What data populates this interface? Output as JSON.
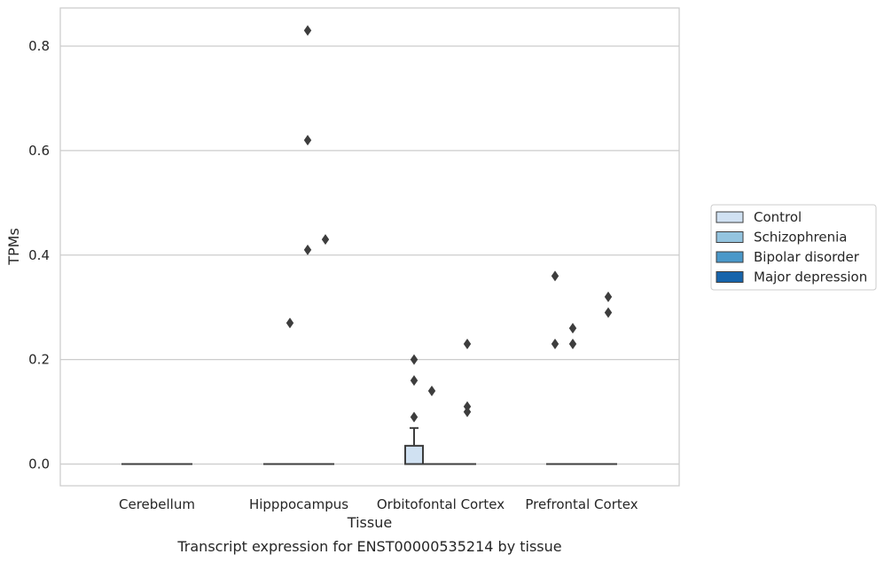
{
  "chart_data": {
    "type": "box",
    "caption": "Transcript expression for ENST00000535214 by tissue",
    "xlabel": "Tissue",
    "ylabel": "TPMs",
    "ylim": [
      -0.04,
      0.873
    ],
    "yticks": [
      0.0,
      0.2,
      0.4,
      0.6,
      0.8
    ],
    "ytick_labels": [
      "0.0",
      "0.2",
      "0.4",
      "0.6",
      "0.8"
    ],
    "grid": "horizontal",
    "legend_position": "right",
    "categories": [
      "Cerebellum",
      "Hipppocampus",
      "Orbitofontal Cortex",
      "Prefrontal Cortex"
    ],
    "series": [
      {
        "name": "Control",
        "color": "#d0e1f2"
      },
      {
        "name": "Schizophrenia",
        "color": "#94c4df"
      },
      {
        "name": "Bipolar disorder",
        "color": "#4a98c9"
      },
      {
        "name": "Major depression",
        "color": "#1764ab"
      }
    ],
    "boxes": [
      {
        "category": 0,
        "series": 0,
        "q1": 0,
        "median": 0,
        "q3": 0,
        "whisker_low": 0,
        "whisker_high": 0,
        "outliers": []
      },
      {
        "category": 0,
        "series": 1,
        "q1": 0,
        "median": 0,
        "q3": 0,
        "whisker_low": 0,
        "whisker_high": 0,
        "outliers": []
      },
      {
        "category": 0,
        "series": 2,
        "q1": 0,
        "median": 0,
        "q3": 0,
        "whisker_low": 0,
        "whisker_high": 0,
        "outliers": []
      },
      {
        "category": 0,
        "series": 3,
        "q1": 0,
        "median": 0,
        "q3": 0,
        "whisker_low": 0,
        "whisker_high": 0,
        "outliers": []
      },
      {
        "category": 1,
        "series": 0,
        "q1": 0,
        "median": 0,
        "q3": 0,
        "whisker_low": 0,
        "whisker_high": 0,
        "outliers": []
      },
      {
        "category": 1,
        "series": 1,
        "q1": 0,
        "median": 0,
        "q3": 0,
        "whisker_low": 0,
        "whisker_high": 0,
        "outliers": [
          0.27
        ]
      },
      {
        "category": 1,
        "series": 2,
        "q1": 0,
        "median": 0,
        "q3": 0,
        "whisker_low": 0,
        "whisker_high": 0,
        "outliers": [
          0.83,
          0.62,
          0.41
        ]
      },
      {
        "category": 1,
        "series": 3,
        "q1": 0,
        "median": 0,
        "q3": 0,
        "whisker_low": 0,
        "whisker_high": 0,
        "outliers": [
          0.43
        ]
      },
      {
        "category": 2,
        "series": 0,
        "q1": 0,
        "median": 0,
        "q3": 0.035,
        "whisker_low": 0,
        "whisker_high": 0.069,
        "outliers": [
          0.2,
          0.16,
          0.09
        ]
      },
      {
        "category": 2,
        "series": 1,
        "q1": 0,
        "median": 0,
        "q3": 0,
        "whisker_low": 0,
        "whisker_high": 0,
        "outliers": [
          0.14
        ]
      },
      {
        "category": 2,
        "series": 2,
        "q1": 0,
        "median": 0,
        "q3": 0,
        "whisker_low": 0,
        "whisker_high": 0,
        "outliers": []
      },
      {
        "category": 2,
        "series": 3,
        "q1": 0,
        "median": 0,
        "q3": 0,
        "whisker_low": 0,
        "whisker_high": 0,
        "outliers": [
          0.23,
          0.11,
          0.1
        ]
      },
      {
        "category": 3,
        "series": 0,
        "q1": 0,
        "median": 0,
        "q3": 0,
        "whisker_low": 0,
        "whisker_high": 0,
        "outliers": [
          0.36,
          0.23
        ]
      },
      {
        "category": 3,
        "series": 1,
        "q1": 0,
        "median": 0,
        "q3": 0,
        "whisker_low": 0,
        "whisker_high": 0,
        "outliers": [
          0.26,
          0.23
        ]
      },
      {
        "category": 3,
        "series": 2,
        "q1": 0,
        "median": 0,
        "q3": 0,
        "whisker_low": 0,
        "whisker_high": 0,
        "outliers": []
      },
      {
        "category": 3,
        "series": 3,
        "q1": 0,
        "median": 0,
        "q3": 0,
        "whisker_low": 0,
        "whisker_high": 0,
        "outliers": [
          0.32,
          0.29
        ]
      }
    ]
  }
}
